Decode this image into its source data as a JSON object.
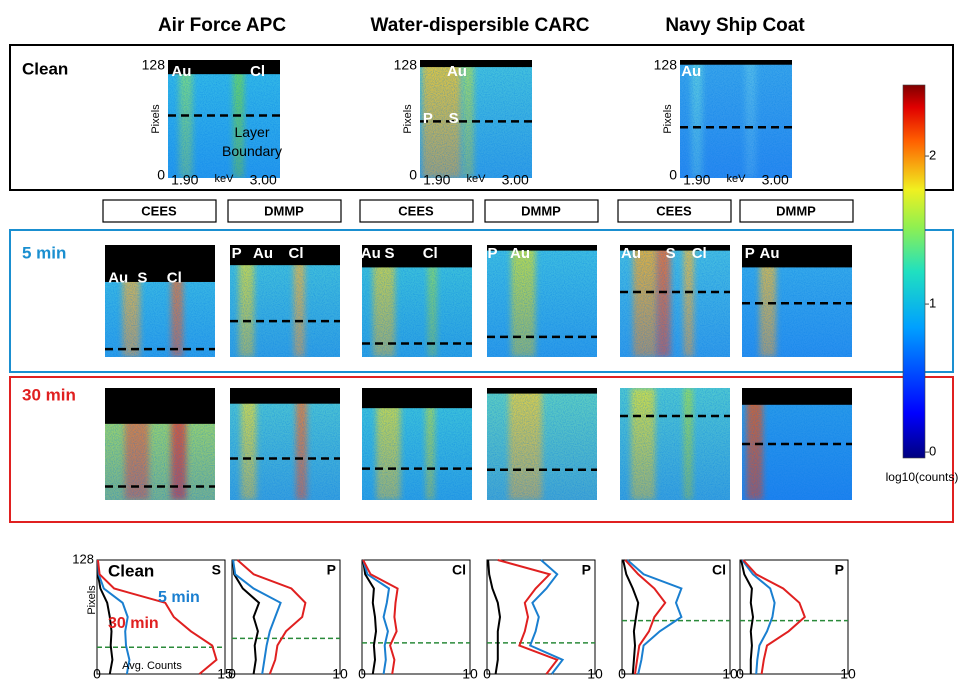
{
  "columns": [
    "Air Force APC",
    "Water-dispersible CARC",
    "Navy Ship Coat"
  ],
  "clean": {
    "label": "Clean",
    "panels": [
      {
        "elements": [
          "Au",
          "Cl"
        ],
        "note": [
          "Layer",
          "Boundary"
        ],
        "y_label": "Pixels",
        "yticks": [
          0,
          128
        ],
        "x_label": "keV",
        "xticks": [
          {
            "value": 1.9,
            "label": "1.90"
          },
          {
            "value": 3,
            "label": "3.00"
          }
        ]
      },
      {
        "elements": [
          "Au",
          "P",
          "S"
        ],
        "y_label": "Pixels",
        "yticks": [
          0,
          128
        ],
        "x_label": "keV",
        "xticks": [
          {
            "value": 1.9,
            "label": "1.90"
          },
          {
            "value": 3,
            "label": "3.00"
          }
        ]
      },
      {
        "elements": [
          "Au"
        ],
        "y_label": "Pixels",
        "yticks": [
          0,
          128
        ],
        "x_label": "keV",
        "xticks": [
          {
            "value": 1.9,
            "label": "1.90"
          },
          {
            "value": 3,
            "label": "3.00"
          }
        ]
      }
    ]
  },
  "agents": [
    "CEES",
    "DMMP",
    "CEES",
    "DMMP",
    "CEES",
    "DMMP"
  ],
  "rows": [
    {
      "label": "5 min",
      "color": "#1a8fd0",
      "panels": [
        {
          "elements": [
            "Au",
            "S",
            "Cl"
          ]
        },
        {
          "elements": [
            "P",
            "Au",
            "Cl"
          ]
        },
        {
          "elements": [
            "Au",
            "S",
            "Cl"
          ]
        },
        {
          "elements": [
            "P",
            "Au"
          ]
        },
        {
          "elements": [
            "Au",
            "S",
            "Cl"
          ]
        },
        {
          "elements": [
            "P",
            "Au"
          ]
        }
      ]
    },
    {
      "label": "30 min",
      "color": "#e02020",
      "panels": [
        {},
        {},
        {},
        {},
        {},
        {}
      ]
    }
  ],
  "colorbar": {
    "label": "log10(counts)",
    "lim": [
      -0.04,
      2.48
    ],
    "ticks": [
      0,
      1,
      2
    ]
  },
  "profiles": {
    "type": "line",
    "y_label": "Pixels",
    "x_label": "Avg. Counts",
    "pixels": [
      0,
      16,
      32,
      48,
      64,
      80,
      96,
      112,
      128
    ],
    "legend": [
      {
        "name": "Clean",
        "color": "#000000"
      },
      {
        "name": "5 min",
        "color": "#1a7fd0"
      },
      {
        "name": "30 min",
        "color": "#e02020"
      }
    ],
    "charts": [
      {
        "element": "S",
        "xlim": [
          0,
          15
        ],
        "xticks": [
          0,
          15
        ],
        "ylim": [
          0,
          128
        ],
        "yticks": [
          128
        ],
        "boundary": 30,
        "series": [
          [
            1.5,
            1.8,
            1.6,
            1.7,
            1.5,
            1.2,
            0.4,
            0.1,
            0.1
          ],
          [
            3.5,
            3.8,
            3.4,
            3.3,
            3.6,
            3.0,
            0.8,
            0.2,
            0.1
          ],
          [
            12,
            14,
            13.5,
            11,
            9,
            8,
            2,
            0.3,
            0.1
          ]
        ]
      },
      {
        "element": "P",
        "xlim": [
          0,
          10
        ],
        "xticks": [
          0,
          10
        ],
        "ylim": [
          0,
          128
        ],
        "boundary": 40,
        "series": [
          [
            2,
            2.2,
            2.1,
            2.4,
            2.0,
            2.5,
            1.0,
            0.2,
            0.1
          ],
          [
            2.8,
            3.0,
            3.2,
            3.5,
            4.0,
            4.5,
            2,
            0.3,
            0.1
          ],
          [
            3.5,
            4,
            4.2,
            5,
            6.5,
            6.8,
            5.5,
            2,
            0.5
          ]
        ]
      },
      {
        "element": "Cl",
        "xlim": [
          0,
          10
        ],
        "xticks": [
          0,
          10
        ],
        "ylim": [
          0,
          128
        ],
        "boundary": 35,
        "series": [
          [
            1,
            1.2,
            1.1,
            1.3,
            1.2,
            1.0,
            1.1,
            0.3,
            0.1
          ],
          [
            2,
            2.2,
            2.1,
            2.4,
            2.0,
            2.3,
            2.5,
            0.5,
            0.1
          ],
          [
            2.8,
            3,
            2.6,
            3.2,
            3.0,
            3.1,
            3.3,
            0.8,
            0.1
          ]
        ]
      },
      {
        "element": "P",
        "xlim": [
          0,
          10
        ],
        "xticks": [
          0,
          10
        ],
        "ylim": [
          0,
          128
        ],
        "boundary": 35,
        "series": [
          [
            0.8,
            1,
            1,
            1,
            1.2,
            1,
            0.5,
            0.2,
            0.1
          ],
          [
            6,
            7,
            4,
            4.5,
            4.8,
            4.2,
            5.5,
            6.5,
            5
          ],
          [
            5.5,
            6.5,
            3,
            3.5,
            3.8,
            3.5,
            4.5,
            5.8,
            1
          ]
        ]
      },
      {
        "element": "Cl",
        "xlim": [
          0,
          10
        ],
        "xticks": [
          0,
          10
        ],
        "ylim": [
          0,
          128
        ],
        "boundary": 60,
        "series": [
          [
            1,
            1.1,
            1.2,
            1.1,
            1.3,
            1.5,
            1.0,
            0.4,
            0.1
          ],
          [
            1.5,
            1.8,
            2.0,
            3.5,
            5.5,
            5.0,
            5.5,
            2,
            0.5
          ],
          [
            1.2,
            1.4,
            1.6,
            2.5,
            3.0,
            4.0,
            3.0,
            1.5,
            0.3
          ]
        ]
      },
      {
        "element": "P",
        "xlim": [
          0,
          10
        ],
        "xticks": [
          0,
          10
        ],
        "ylim": [
          0,
          128
        ],
        "boundary": 60,
        "series": [
          [
            1,
            1,
            1.1,
            1,
            1.2,
            1.0,
            1.1,
            0.4,
            0.1
          ],
          [
            1.5,
            1.6,
            1.8,
            2.5,
            3.0,
            3.2,
            2.8,
            1.2,
            0.2
          ],
          [
            2,
            2.2,
            2.5,
            4.5,
            6,
            5.5,
            4,
            1.5,
            0.3
          ]
        ]
      }
    ]
  }
}
